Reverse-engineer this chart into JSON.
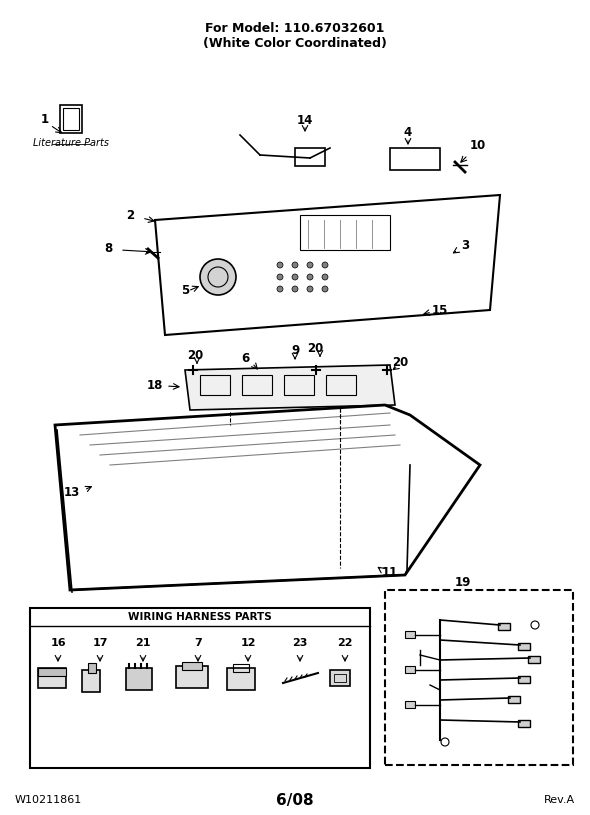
{
  "title_line1": "For Model: 110.67032601",
  "title_line2": "(White Color Coordinated)",
  "footer_left": "W10211861",
  "footer_center": "6/08",
  "footer_right": "Rev.A",
  "bg_color": "#ffffff",
  "text_color": "#000000",
  "part_numbers": [
    1,
    2,
    3,
    4,
    5,
    6,
    7,
    8,
    9,
    10,
    11,
    12,
    13,
    14,
    15,
    16,
    17,
    18,
    19,
    20,
    21,
    22,
    23
  ],
  "wiring_harness_parts": [
    16,
    17,
    21,
    7,
    12,
    23,
    22
  ],
  "wiring_harness_label": "WIRING HARNESS PARTS",
  "lit_parts_label": "Literature Parts",
  "fig_size": [
    5.9,
    8.15
  ],
  "dpi": 100
}
